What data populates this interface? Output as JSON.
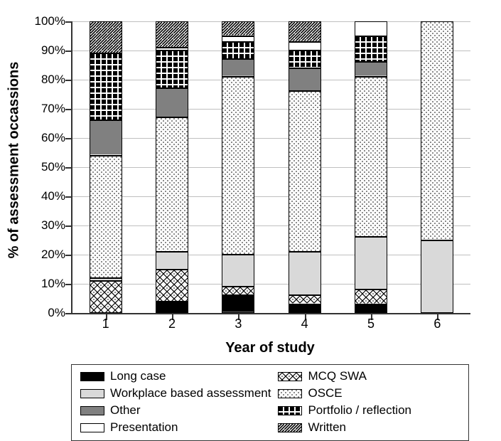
{
  "chart": {
    "type": "stacked-bar-100",
    "y_axis_title": "% of assessment occassions",
    "x_axis_title": "Year of study",
    "ylim": [
      0,
      100
    ],
    "ytick_step": 10,
    "y_tick_suffix": "%",
    "background_color": "#ffffff",
    "grid_color": "#bfbfbf",
    "axis_color": "#333333",
    "bar_width_ratio": 0.46,
    "title_fontsize": 20,
    "label_fontsize": 17,
    "categories": [
      "1",
      "2",
      "3",
      "4",
      "5",
      "6"
    ],
    "series": [
      {
        "key": "long_case",
        "label": "Long case",
        "fill": "#000000",
        "pattern": null
      },
      {
        "key": "mcq",
        "label": "MCQ SWA",
        "fill": "url(#pat-diamond)",
        "pattern": "diamond"
      },
      {
        "key": "wba",
        "label": "Workplace based assessment",
        "fill": "#d9d9d9",
        "pattern": null
      },
      {
        "key": "osce",
        "label": "OSCE",
        "fill": "url(#pat-dots)",
        "pattern": "dots"
      },
      {
        "key": "other",
        "label": "Other",
        "fill": "#808080",
        "pattern": null
      },
      {
        "key": "portfolio",
        "label": "Portfolio / reflection",
        "fill": "url(#pat-bigsq)",
        "pattern": "big-squares"
      },
      {
        "key": "presentation",
        "label": "Presentation",
        "fill": "#ffffff",
        "pattern": null
      },
      {
        "key": "written",
        "label": "Written",
        "fill": "url(#pat-diag)",
        "pattern": "diagonal"
      }
    ],
    "data": {
      "1": {
        "long_case": 0,
        "mcq": 11,
        "wba": 1,
        "osce": 42,
        "other": 12,
        "portfolio": 23,
        "presentation": 0,
        "written": 11
      },
      "2": {
        "long_case": 4,
        "mcq": 11,
        "wba": 6,
        "osce": 46,
        "other": 10,
        "portfolio": 13,
        "presentation": 1,
        "written": 9
      },
      "3": {
        "long_case": 6,
        "mcq": 3,
        "wba": 11,
        "osce": 61,
        "other": 6,
        "portfolio": 6,
        "presentation": 2,
        "written": 5
      },
      "4": {
        "long_case": 3,
        "mcq": 3,
        "wba": 15,
        "osce": 55,
        "other": 8,
        "portfolio": 6,
        "presentation": 3,
        "written": 7
      },
      "5": {
        "long_case": 3,
        "mcq": 5,
        "wba": 18,
        "osce": 55,
        "other": 5,
        "portfolio": 9,
        "presentation": 5,
        "written": 0
      },
      "6": {
        "long_case": 0,
        "mcq": 0,
        "wba": 25,
        "osce": 75,
        "other": 0,
        "portfolio": 0,
        "presentation": 0,
        "written": 0
      }
    }
  }
}
